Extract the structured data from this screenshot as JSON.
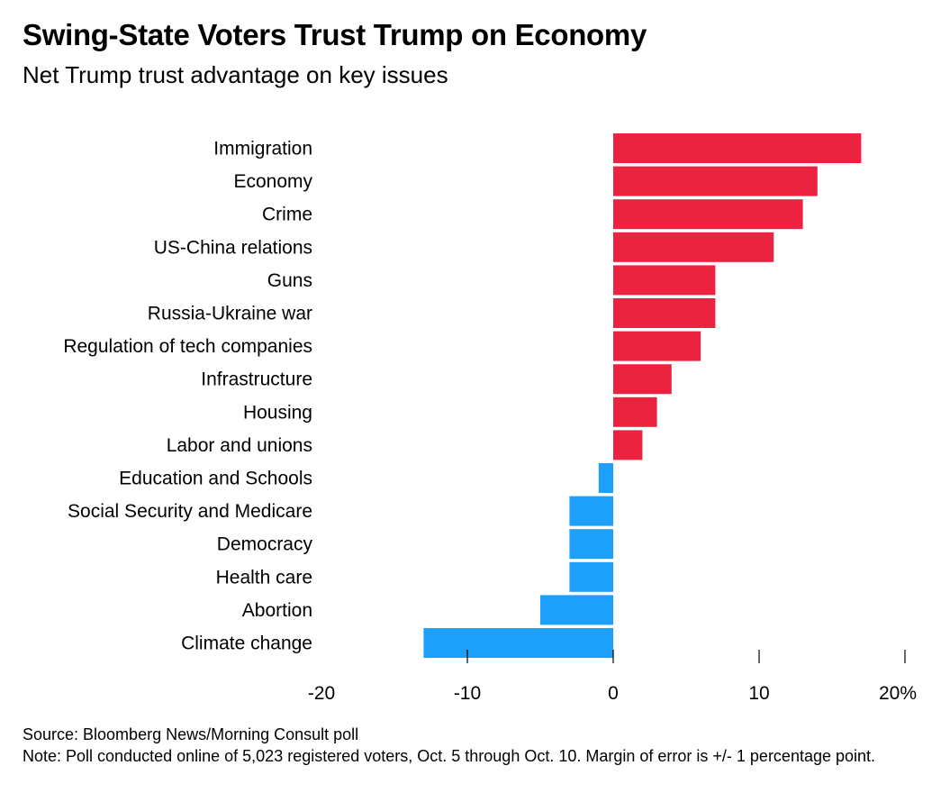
{
  "header": {
    "title": "Swing-State Voters Trust Trump on Economy",
    "subtitle": "Net Trump trust advantage on key issues"
  },
  "footer": {
    "source": "Source: Bloomberg News/Morning Consult poll",
    "note": "Note: Poll conducted online of 5,023 registered voters, Oct. 5 through Oct. 10. Margin of error is +/- 1 percentage point."
  },
  "colors": {
    "positive": "#ec2340",
    "negative": "#1da0fc",
    "axis": "#000000"
  },
  "chart_data": {
    "type": "bar",
    "orientation": "horizontal",
    "title": "Swing-State Voters Trust Trump on Economy",
    "subtitle": "Net Trump trust advantage on key issues",
    "categories": [
      "Immigration",
      "Economy",
      "Crime",
      "US-China relations",
      "Guns",
      "Russia-Ukraine war",
      "Regulation of tech companies",
      "Infrastructure",
      "Housing",
      "Labor and unions",
      "Education and Schools",
      "Social Security and Medicare",
      "Democracy",
      "Health care",
      "Abortion",
      "Climate change"
    ],
    "values": [
      17,
      14,
      13,
      11,
      7,
      7,
      6,
      4,
      3,
      2,
      -1,
      -3,
      -3,
      -3,
      -5,
      -13
    ],
    "xlim": [
      -20,
      20
    ],
    "xticks": [
      -20,
      -10,
      0,
      10,
      20
    ],
    "xtick_labels": [
      "-20",
      "-10",
      "0",
      "10",
      "20%"
    ],
    "grid": false,
    "legend": "none"
  }
}
